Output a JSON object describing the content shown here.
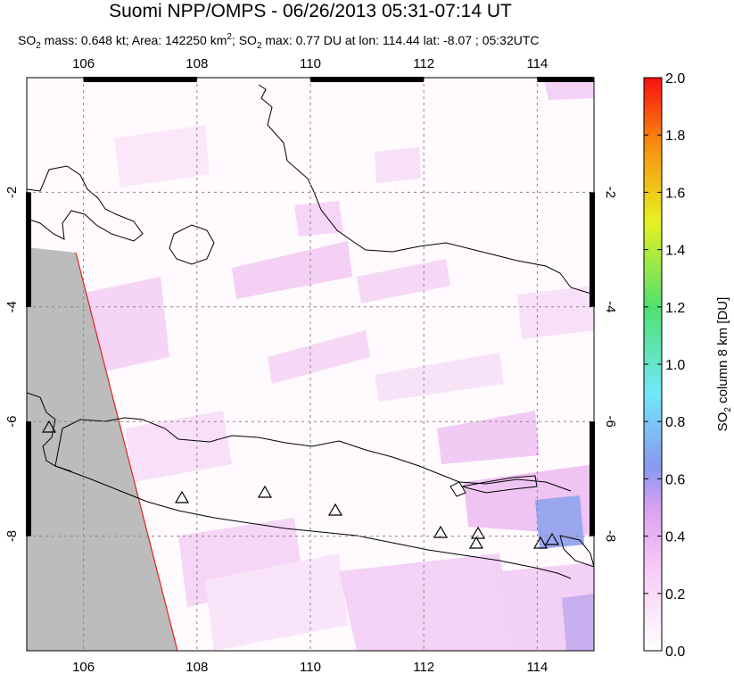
{
  "header": {
    "title": "Suomi NPP/OMPS - 06/26/2013 05:31-07:14 UT",
    "subtitle": [
      "SO",
      "2",
      " mass: 0.648 kt; Area: 142250 km",
      "2",
      "; SO",
      "2",
      " max: 0.77 DU at lon: 114.44 lat: -8.07 ; 05:32UTC"
    ]
  },
  "map": {
    "lon_range": [
      105,
      115
    ],
    "lat_range": [
      -10,
      0
    ],
    "lon_ticks": [
      106,
      108,
      110,
      112,
      114
    ],
    "lat_ticks": [
      -2,
      -4,
      -6,
      -8
    ]
  },
  "colorbar": {
    "label": [
      "SO",
      "2",
      " column 8 km [DU]"
    ],
    "range": [
      0,
      2
    ],
    "ticks": [
      {
        "value": 0,
        "label": "0.0"
      },
      0.2,
      0.4,
      0.6,
      0.8,
      {
        "value": 1,
        "label": "1.0"
      },
      1.2,
      1.4,
      1.6,
      1.8,
      {
        "value": 2,
        "label": "2.0"
      }
    ]
  }
}
